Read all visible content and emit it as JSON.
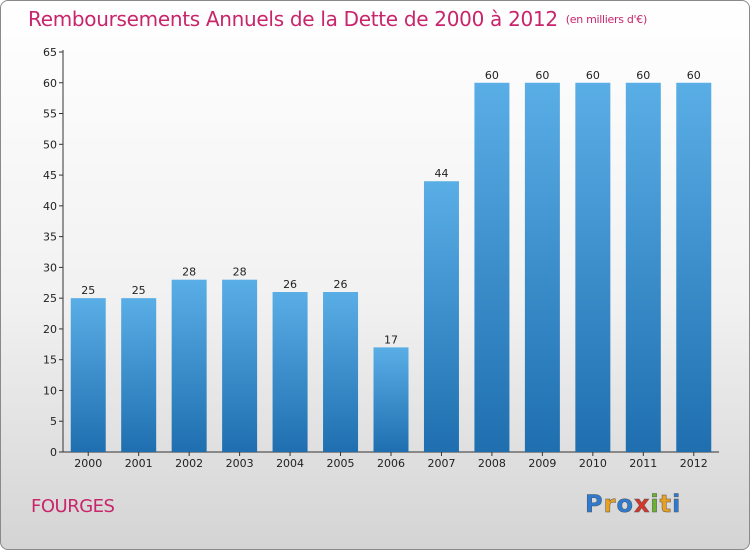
{
  "header": {
    "title": "Remboursements Annuels de la Dette de 2000 à 2012",
    "unit": "(en milliers d'€)"
  },
  "footer": {
    "place": "FOURGES",
    "logo_letters": [
      "P",
      "r",
      "o",
      "x",
      "i",
      "t",
      "i"
    ]
  },
  "colors": {
    "title": "#c8256b",
    "bar_top": "#5aaee6",
    "bar_bottom": "#1f6fb0",
    "logo": [
      "#2d7bd0",
      "#e8a020",
      "#2d7bd0",
      "#d8352a",
      "#6cb32d",
      "#e8a020",
      "#2d7bd0"
    ]
  },
  "chart_data": {
    "type": "bar",
    "categories": [
      "2000",
      "2001",
      "2002",
      "2003",
      "2004",
      "2005",
      "2006",
      "2007",
      "2008",
      "2009",
      "2010",
      "2011",
      "2012"
    ],
    "values": [
      25,
      25,
      28,
      28,
      26,
      26,
      17,
      44,
      60,
      60,
      60,
      60,
      60
    ],
    "title": "Remboursements Annuels de la Dette de 2000 à 2012",
    "ylim": [
      0,
      65
    ],
    "yticks": [
      0,
      5,
      10,
      15,
      20,
      25,
      30,
      35,
      40,
      45,
      50,
      55,
      60,
      65
    ],
    "grid": false
  }
}
